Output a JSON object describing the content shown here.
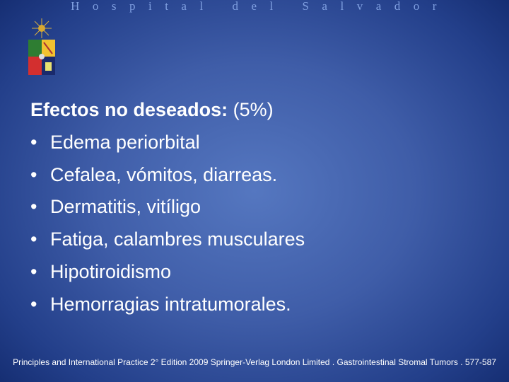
{
  "header": {
    "title": "Hospital del Salvador"
  },
  "logo": {
    "name": "university-crest-logo",
    "colors": [
      "#2e7d32",
      "#f2c230",
      "#d32f2f",
      "#1a2a6c"
    ]
  },
  "slide": {
    "title_bold": "Efectos no deseados:",
    "title_rest": " (5%)",
    "bullet": "•",
    "items": [
      "Edema periorbital",
      "Cefalea, vómitos, diarreas.",
      "Dermatitis, vitíligo",
      "Fatiga, calambres musculares",
      "Hipotiroidismo",
      "Hemorragias intratumorales."
    ]
  },
  "footer": {
    "citation": "Principles and International Practice 2° Edition 2009 Springer-Verlag London Limited . Gastrointestinal Stromal Tumors . 577-587"
  }
}
